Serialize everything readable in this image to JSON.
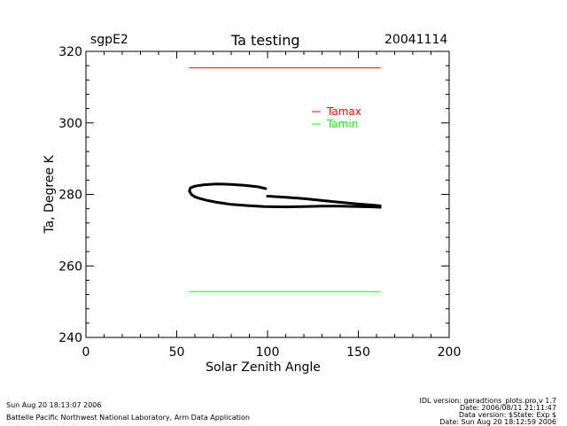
{
  "header": {
    "site": "sgpE2",
    "title": "Ta testing",
    "date": "20041114"
  },
  "chart_data": {
    "type": "line",
    "title": "Ta testing",
    "xlabel": "Solar Zenith Angle",
    "ylabel": "Ta, Degree K",
    "xlim": [
      0,
      200
    ],
    "ylim": [
      240,
      320
    ],
    "xticks": [
      "0",
      "50",
      "100",
      "150",
      "200"
    ],
    "yticks": [
      "240",
      "260",
      "280",
      "300",
      "320"
    ],
    "legend": [
      {
        "label": "Tamax",
        "color": "#ff0000"
      },
      {
        "label": "Tamin",
        "color": "#00ff00"
      }
    ],
    "series": [
      {
        "name": "Tamax",
        "color": "#ff0000",
        "x": [
          57,
          162
        ],
        "y": [
          315.4,
          315.4
        ]
      },
      {
        "name": "Tamin",
        "color": "#00ff00",
        "x": [
          57,
          162
        ],
        "y": [
          252.8,
          252.8
        ]
      },
      {
        "name": "Ta",
        "color": "#000000",
        "x": [
          99,
          95,
          88,
          80,
          72,
          65,
          60,
          57.5,
          57,
          58,
          60,
          63,
          67,
          72,
          80,
          88,
          98,
          110,
          120,
          130,
          140,
          150,
          158,
          162
        ],
        "y": [
          281.6,
          282.1,
          282.5,
          282.8,
          282.9,
          282.7,
          282.3,
          281.8,
          281.0,
          280.0,
          279.3,
          278.8,
          278.3,
          277.8,
          277.2,
          276.9,
          276.6,
          276.5,
          276.6,
          276.7,
          276.7,
          276.6,
          276.5,
          276.4
        ]
      },
      {
        "name": "Ta",
        "color": "#000000",
        "x": [
          100,
          110,
          120,
          130,
          140,
          150,
          158,
          162
        ],
        "y": [
          279.5,
          279.2,
          278.8,
          278.3,
          277.8,
          277.3,
          277.0,
          276.8
        ]
      }
    ]
  },
  "footer": {
    "run_date": "Sun Aug 20 18:13:07 2006",
    "lab": "Battelle Pacific Northwest National Laboratory, Arm Data Application",
    "idl_version": "IDL version: geradtions_plots.pro,v 1.7",
    "file_date": "Date: 2006/08/11 21:11:47",
    "data_version": "Data version: $State: Exp $",
    "data_date": "Date: Sun Aug 20 18:12:59 2006"
  }
}
